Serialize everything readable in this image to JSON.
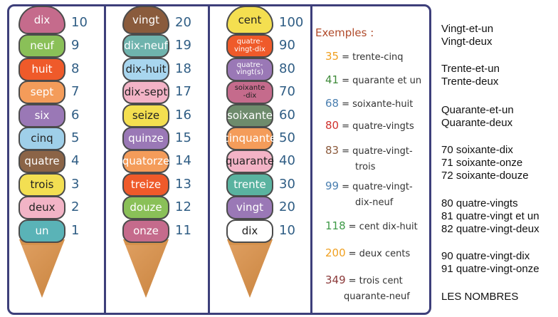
{
  "columns": [
    {
      "scoops": [
        {
          "word": "dix",
          "number": "10",
          "color": "#c56b8c"
        },
        {
          "word": "neuf",
          "number": "9",
          "color": "#8ac058"
        },
        {
          "word": "huit",
          "number": "8",
          "color": "#ef5a2a"
        },
        {
          "word": "sept",
          "number": "7",
          "color": "#f49c5a"
        },
        {
          "word": "six",
          "number": "6",
          "color": "#9a78b6"
        },
        {
          "word": "cinq",
          "number": "5",
          "color": "#9fcfe9"
        },
        {
          "word": "quatre",
          "number": "4",
          "color": "#8b6447"
        },
        {
          "word": "trois",
          "number": "3",
          "color": "#f3df52"
        },
        {
          "word": "deux",
          "number": "2",
          "color": "#f2b4c6"
        },
        {
          "word": "un",
          "number": "1",
          "color": "#5ab3b7"
        }
      ]
    },
    {
      "scoops": [
        {
          "word": "vingt",
          "number": "20",
          "color": "#8a5b3c"
        },
        {
          "word": "dix-neuf",
          "number": "19",
          "color": "#6fb3ad"
        },
        {
          "word": "dix-huit",
          "number": "18",
          "color": "#a8d6ef"
        },
        {
          "word": "dix-sept",
          "number": "17",
          "color": "#f3b3c6"
        },
        {
          "word": "seize",
          "number": "16",
          "color": "#f4df50"
        },
        {
          "word": "quinze",
          "number": "15",
          "color": "#9a78b6"
        },
        {
          "word": "quatorze",
          "number": "14",
          "color": "#f49c5a"
        },
        {
          "word": "treize",
          "number": "13",
          "color": "#ef5a2a"
        },
        {
          "word": "douze",
          "number": "12",
          "color": "#8ac058"
        },
        {
          "word": "onze",
          "number": "11",
          "color": "#c56b8c"
        }
      ]
    },
    {
      "scoops": [
        {
          "word": "cent",
          "number": "100",
          "color": "#f4df50"
        },
        {
          "word": "quatre-vingt-dix",
          "number": "90",
          "color": "#ef5a2a"
        },
        {
          "word": "quatre-vingt(s)",
          "number": "80",
          "color": "#9a78b6"
        },
        {
          "word": "soixante-dix",
          "number": "70",
          "color": "#c56b8c"
        },
        {
          "word": "soixante",
          "number": "60",
          "color": "#6e8b6c"
        },
        {
          "word": "cinquante",
          "number": "50",
          "color": "#f49c5a"
        },
        {
          "word": "quarante",
          "number": "40",
          "color": "#f3b3c6"
        },
        {
          "word": "trente",
          "number": "30",
          "color": "#5ab3a0"
        },
        {
          "word": "vingt",
          "number": "20",
          "color": "#9a78b6"
        },
        {
          "word": "dix",
          "number": "10",
          "color": "#ffffff"
        }
      ]
    }
  ],
  "examples": {
    "title": "Exemples :",
    "items": [
      {
        "value": "35",
        "text": "= trente-cinq",
        "color": "#f0a020"
      },
      {
        "value": "41",
        "text": "= quarante et un",
        "color": "#3f8a3a"
      },
      {
        "value": "68",
        "text": "= soixante-huit",
        "color": "#4a7fb0"
      },
      {
        "value": "80",
        "text": "= quatre-vingts",
        "color": "#d0312d"
      },
      {
        "value": "83",
        "text": "= quatre-vingt-",
        "text2": "trois",
        "color": "#8b5a3c"
      },
      {
        "value": "99",
        "text": "= quatre-vingt-",
        "text2": "dix-neuf",
        "color": "#4a7fb0"
      },
      {
        "value": "118",
        "text": "= cent dix-huit",
        "color": "#3f9a48"
      },
      {
        "value": "200",
        "text": "= deux cents",
        "color": "#f0a020"
      },
      {
        "value": "349",
        "text": "= trois cent",
        "text2": "quarante-neuf",
        "color": "#8b3a3a"
      }
    ]
  },
  "side_list": [
    [
      "Vingt-et-un",
      "Vingt-deux"
    ],
    [
      "Trente-et-un",
      "Trente-deux"
    ],
    [
      "Quarante-et-un",
      "Quarante-deux"
    ],
    [
      "70 soixante-dix",
      "71 soixante-onze",
      "72 soixante-douze"
    ],
    [
      "80 quatre-vingts",
      "81 quatre-vingt et un",
      "82 quatre-vingt-deux"
    ],
    [
      "90 quatre-vingt-dix",
      "91 quatre-vingt-onze"
    ],
    [
      "LES NOMBRES"
    ]
  ]
}
